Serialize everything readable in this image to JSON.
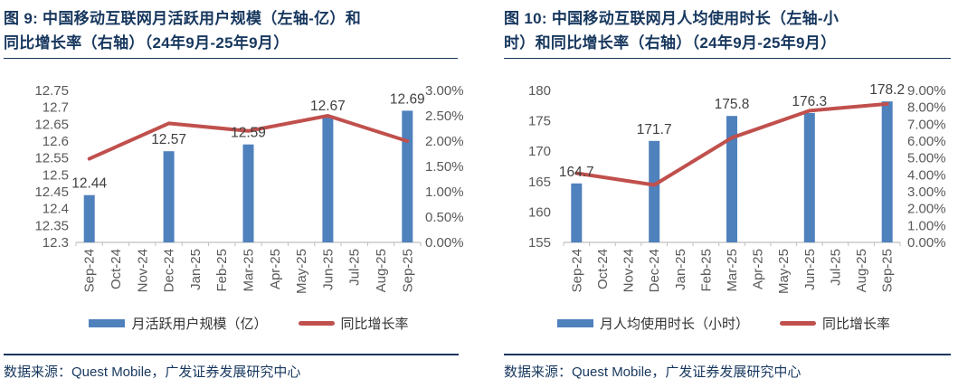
{
  "colors": {
    "bar_blue": "#4F81BD",
    "line_red": "#C0504D",
    "title_navy": "#17375E",
    "tick_gray": "#595959",
    "data_label_gray": "#404040",
    "axis_gray": "#BFBFBF",
    "legend_text": "#333333"
  },
  "chart_data": [
    {
      "id": "fig9",
      "type": "bar+line",
      "title_line1": "图 9:  中国移动互联网月活跃用户规模（左轴-亿）和",
      "title_line2": "同比增长率（右轴）（24年9月-25年9月）",
      "categories": [
        "Sep-24",
        "Oct-24",
        "Nov-24",
        "Dec-24",
        "Jan-25",
        "Feb-25",
        "Mar-25",
        "Apr-25",
        "May-25",
        "Jun-25",
        "Jul-25",
        "Aug-25",
        "Sep-25"
      ],
      "series": [
        {
          "name": "月活跃用户规模（亿）",
          "type": "bar",
          "axis": "left",
          "color": "#4F81BD",
          "points": [
            {
              "category": "Sep-24",
              "value": 12.44,
              "label": "12.44"
            },
            {
              "category": "Dec-24",
              "value": 12.57,
              "label": "12.57"
            },
            {
              "category": "Mar-25",
              "value": 12.59,
              "label": "12.59"
            },
            {
              "category": "Jun-25",
              "value": 12.67,
              "label": "12.67"
            },
            {
              "category": "Sep-25",
              "value": 12.69,
              "label": "12.69"
            }
          ]
        },
        {
          "name": "同比增长率",
          "type": "line",
          "axis": "right",
          "color": "#C0504D",
          "points": [
            {
              "category": "Sep-24",
              "value": 1.65
            },
            {
              "category": "Dec-24",
              "value": 2.35
            },
            {
              "category": "Mar-25",
              "value": 2.2
            },
            {
              "category": "Jun-25",
              "value": 2.5
            },
            {
              "category": "Sep-25",
              "value": 2.0
            }
          ]
        }
      ],
      "left_axis": {
        "min": 12.3,
        "max": 12.75,
        "ticks": [
          "12.75",
          "12.7",
          "12.65",
          "12.6",
          "12.55",
          "12.5",
          "12.45",
          "12.4",
          "12.35",
          "12.3"
        ]
      },
      "right_axis": {
        "min": 0,
        "max": 3,
        "ticks": [
          "3.00%",
          "2.50%",
          "2.00%",
          "1.50%",
          "1.00%",
          "0.50%",
          "0.00%"
        ]
      },
      "grid": false,
      "legend_position": "bottom",
      "source": "数据来源：Quest Mobile，广发证券发展研究中心"
    },
    {
      "id": "fig10",
      "type": "bar+line",
      "title_line1": "图 10:  中国移动互联网月人均使用时长（左轴-小",
      "title_line2": "时）和同比增长率（右轴）（24年9月-25年9月）",
      "categories": [
        "Sep-24",
        "Oct-24",
        "Nov-24",
        "Dec-24",
        "Jan-25",
        "Feb-25",
        "Mar-25",
        "Apr-25",
        "May-25",
        "Jun-25",
        "Jul-25",
        "Aug-25",
        "Sep-25"
      ],
      "series": [
        {
          "name": "月人均使用时长（小时）",
          "type": "bar",
          "axis": "left",
          "color": "#4F81BD",
          "points": [
            {
              "category": "Sep-24",
              "value": 164.7,
              "label": "164.7"
            },
            {
              "category": "Dec-24",
              "value": 171.7,
              "label": "171.7"
            },
            {
              "category": "Mar-25",
              "value": 175.8,
              "label": "175.8"
            },
            {
              "category": "Jun-25",
              "value": 176.3,
              "label": "176.3"
            },
            {
              "category": "Sep-25",
              "value": 178.2,
              "label": "178.2"
            }
          ]
        },
        {
          "name": "同比增长率",
          "type": "line",
          "axis": "right",
          "color": "#C0504D",
          "points": [
            {
              "category": "Sep-24",
              "value": 4.1
            },
            {
              "category": "Dec-24",
              "value": 3.4
            },
            {
              "category": "Mar-25",
              "value": 6.2
            },
            {
              "category": "Jun-25",
              "value": 7.8
            },
            {
              "category": "Sep-25",
              "value": 8.2
            }
          ]
        }
      ],
      "left_axis": {
        "min": 155,
        "max": 180,
        "ticks": [
          "180",
          "175",
          "170",
          "165",
          "160",
          "155"
        ]
      },
      "right_axis": {
        "min": 0,
        "max": 9,
        "ticks": [
          "9.00%",
          "8.00%",
          "7.00%",
          "6.00%",
          "5.00%",
          "4.00%",
          "3.00%",
          "2.00%",
          "1.00%",
          "0.00%"
        ]
      },
      "grid": false,
      "legend_position": "bottom",
      "source": "数据来源：Quest Mobile，广发证券发展研究中心"
    }
  ]
}
